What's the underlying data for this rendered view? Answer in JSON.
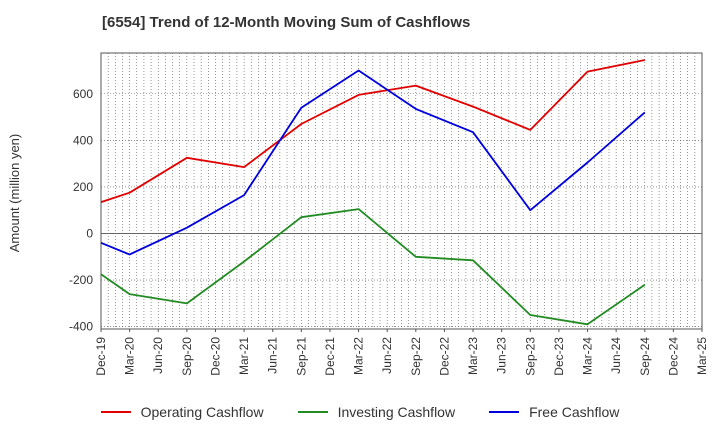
{
  "title": "[6554]  Trend of 12-Month Moving Sum of Cashflows",
  "chart_data": {
    "type": "line",
    "title": "[6554]  Trend of 12-Month Moving Sum of Cashflows",
    "ylabel": "Amount (million yen)",
    "xlabel": "",
    "x": [
      "Dec-19",
      "Mar-20",
      "Jun-20",
      "Sep-20",
      "Dec-20",
      "Mar-21",
      "Jun-21",
      "Sep-21",
      "Dec-21",
      "Mar-22",
      "Jun-22",
      "Sep-22",
      "Dec-22",
      "Mar-23",
      "Jun-23",
      "Sep-23",
      "Dec-23",
      "Mar-24",
      "Jun-24",
      "Sep-24",
      "Dec-24",
      "Mar-25"
    ],
    "ylim": [
      -410,
      775
    ],
    "yticks": [
      -400,
      -200,
      0,
      200,
      400,
      600
    ],
    "grid": true,
    "legend_position": "bottom",
    "series": [
      {
        "name": "Operating Cashflow",
        "color": "#e00000",
        "values": [
          135,
          175,
          null,
          325,
          null,
          285,
          null,
          470,
          null,
          595,
          null,
          635,
          null,
          545,
          null,
          445,
          null,
          695,
          null,
          745,
          null,
          null
        ]
      },
      {
        "name": "Investing Cashflow",
        "color": "#228b22",
        "values": [
          -175,
          -260,
          null,
          -300,
          null,
          -120,
          null,
          70,
          null,
          105,
          null,
          -100,
          null,
          -115,
          null,
          -350,
          null,
          -390,
          null,
          -220,
          null,
          null
        ]
      },
      {
        "name": "Free Cashflow",
        "color": "#0000dd",
        "values": [
          -40,
          -90,
          null,
          25,
          null,
          165,
          null,
          540,
          null,
          700,
          null,
          535,
          null,
          435,
          null,
          100,
          null,
          305,
          null,
          520,
          null,
          null
        ]
      }
    ]
  }
}
